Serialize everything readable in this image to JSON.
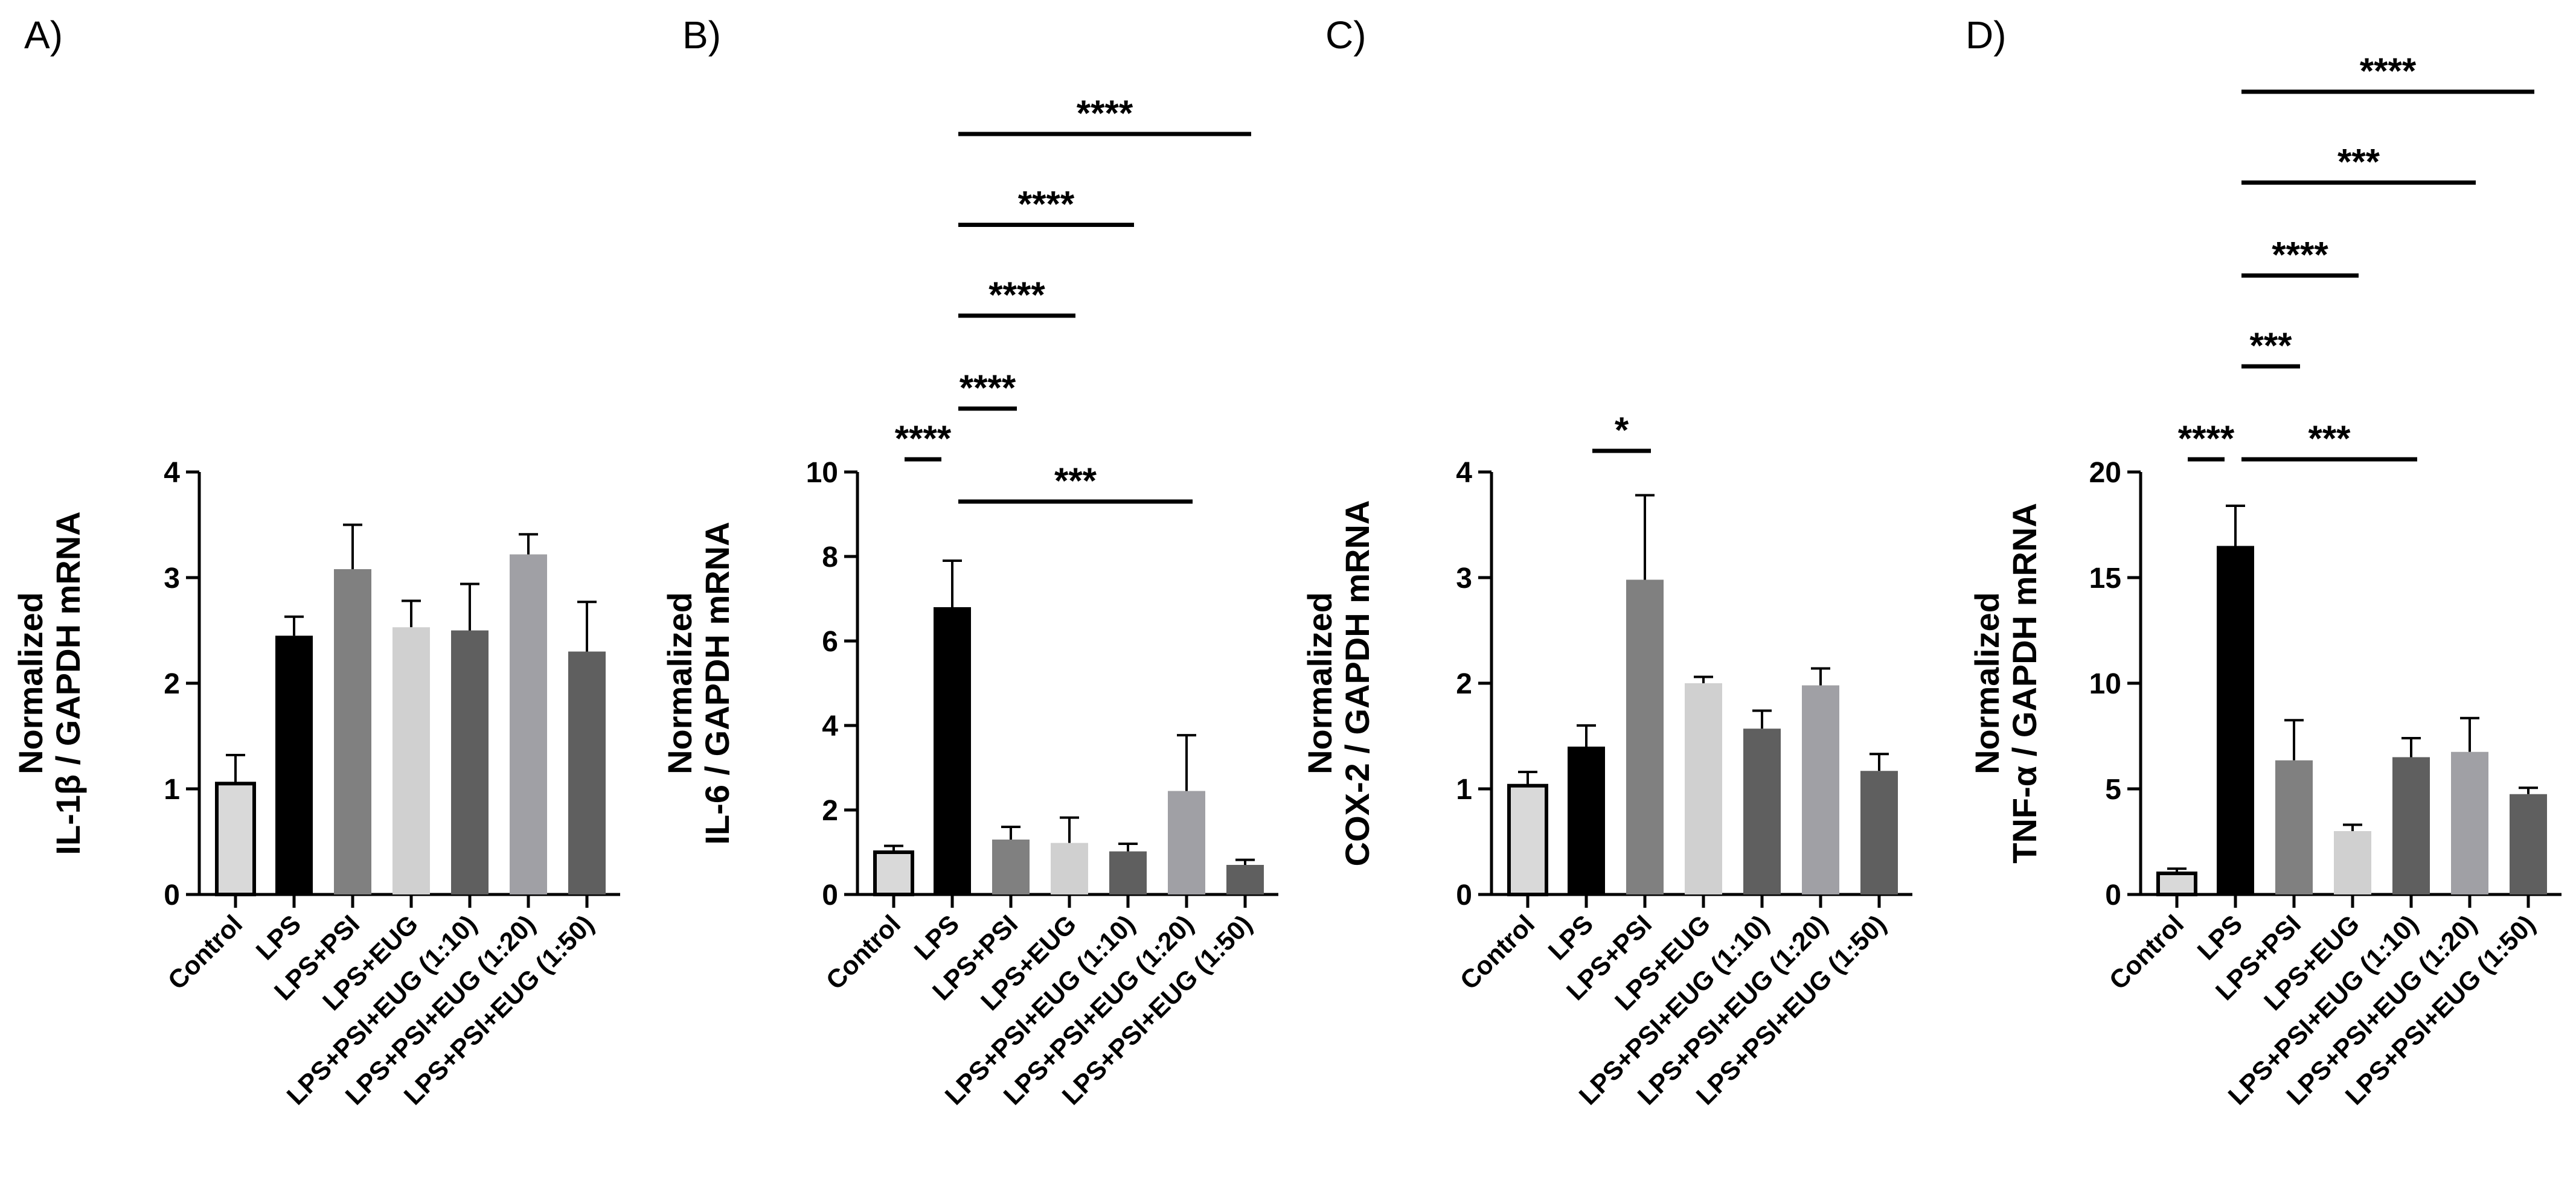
{
  "chart_data": [
    {
      "type": "bar",
      "panel_label": "A)",
      "ylabel_line1": "Normalized",
      "ylabel_line2": "IL-1β / GAPDH mRNA",
      "categories": [
        "Control",
        "LPS",
        "LPS+PSI",
        "LPS+EUG",
        "LPS+PSI+EUG (1:10)",
        "LPS+PSI+EUG (1:20)",
        "LPS+PSI+EUG (1:50)"
      ],
      "values": [
        1.05,
        2.45,
        3.08,
        2.53,
        2.5,
        3.22,
        2.3
      ],
      "errors": [
        0.27,
        0.18,
        0.42,
        0.25,
        0.44,
        0.19,
        0.47
      ],
      "ylim": [
        0,
        4
      ],
      "yticks": [
        0,
        1,
        2,
        3,
        4
      ],
      "significance": []
    },
    {
      "type": "bar",
      "panel_label": "B)",
      "ylabel_line1": "Normalized",
      "ylabel_line2": "IL-6 / GAPDH mRNA",
      "categories": [
        "Control",
        "LPS",
        "LPS+PSI",
        "LPS+EUG",
        "LPS+PSI+EUG (1:10)",
        "LPS+PSI+EUG (1:20)",
        "LPS+PSI+EUG (1:50)"
      ],
      "values": [
        1.0,
        6.8,
        1.3,
        1.22,
        1.02,
        2.45,
        0.7
      ],
      "errors": [
        0.15,
        1.1,
        0.3,
        0.6,
        0.18,
        1.32,
        0.12
      ],
      "ylim": [
        0,
        10
      ],
      "yticks": [
        0,
        2,
        4,
        6,
        8,
        10
      ],
      "significance": [
        {
          "from": 0,
          "to": 1,
          "label": "****",
          "level": 10.3
        },
        {
          "from": 1,
          "to": 5,
          "label": "***",
          "level": 9.3
        },
        {
          "from": 1,
          "to": 2,
          "label": "****",
          "level": 11.5
        },
        {
          "from": 1,
          "to": 3,
          "label": "****",
          "level": 13.7
        },
        {
          "from": 1,
          "to": 4,
          "label": "****",
          "level": 15.85
        },
        {
          "from": 1,
          "to": 6,
          "label": "****",
          "level": 18.0
        }
      ]
    },
    {
      "type": "bar",
      "panel_label": "C)",
      "ylabel_line1": "Normalized",
      "ylabel_line2": "COX-2 / GAPDH mRNA",
      "categories": [
        "Control",
        "LPS",
        "LPS+PSI",
        "LPS+EUG",
        "LPS+PSI+EUG (1:10)",
        "LPS+PSI+EUG (1:20)",
        "LPS+PSI+EUG (1:50)"
      ],
      "values": [
        1.03,
        1.4,
        2.98,
        2.0,
        1.57,
        1.98,
        1.17
      ],
      "errors": [
        0.13,
        0.2,
        0.8,
        0.06,
        0.17,
        0.16,
        0.16
      ],
      "ylim": [
        0,
        4
      ],
      "yticks": [
        0,
        1,
        2,
        3,
        4
      ],
      "significance": [
        {
          "from": 1,
          "to": 2,
          "label": "*",
          "level": 4.2
        }
      ]
    },
    {
      "type": "bar",
      "panel_label": "D)",
      "ylabel_line1": "Normalized",
      "ylabel_line2": "TNF-α / GAPDH mRNA",
      "categories": [
        "Control",
        "LPS",
        "LPS+PSI",
        "LPS+EUG",
        "LPS+PSI+EUG (1:10)",
        "LPS+PSI+EUG (1:20)",
        "LPS+PSI+EUG (1:50)"
      ],
      "values": [
        1.0,
        16.5,
        6.35,
        3.0,
        6.5,
        6.75,
        4.75
      ],
      "errors": [
        0.22,
        1.9,
        1.9,
        0.3,
        0.9,
        1.6,
        0.3
      ],
      "ylim": [
        0,
        20
      ],
      "yticks": [
        0,
        5,
        10,
        15,
        20
      ],
      "significance": [
        {
          "from": 0,
          "to": 1,
          "label": "****",
          "level": 20.6
        },
        {
          "from": 1,
          "to": 4,
          "label": "***",
          "level": 20.6
        },
        {
          "from": 1,
          "to": 2,
          "label": "***",
          "level": 25.0
        },
        {
          "from": 1,
          "to": 3,
          "label": "****",
          "level": 29.3
        },
        {
          "from": 1,
          "to": 5,
          "label": "***",
          "level": 33.7
        },
        {
          "from": 1,
          "to": 6,
          "label": "****",
          "level": 38.0
        }
      ]
    }
  ],
  "colors": {
    "bar_fills": [
      "#d9d9d9",
      "#000000",
      "#808080",
      "#d0d0d0",
      "#5f5f5f",
      "#a0a0a5",
      "#5f5f5f"
    ],
    "outline": "#000000"
  }
}
